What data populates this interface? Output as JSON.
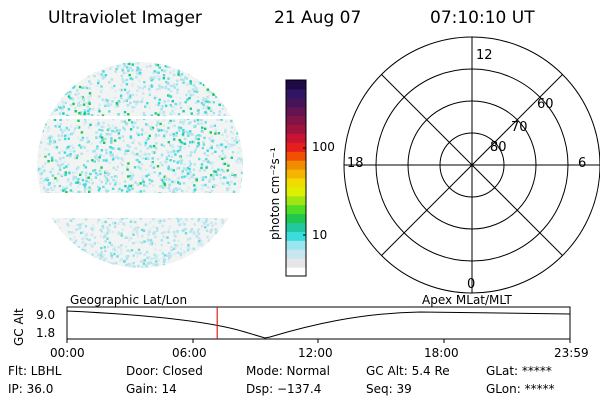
{
  "header": {
    "title": "Ultraviolet Imager",
    "date": "21 Aug 07",
    "time": "07:10:10 UT"
  },
  "colorbar": {
    "unit_label": "photon cm⁻²s⁻¹",
    "tick_labels": [
      "100",
      "10"
    ],
    "colors": [
      "#ffffff",
      "#e6e6e6",
      "#c8e6f0",
      "#9ae6f0",
      "#3cdcdc",
      "#22c8a0",
      "#20c850",
      "#50dc28",
      "#a0e614",
      "#dcf000",
      "#f0dc00",
      "#f5b400",
      "#f08c00",
      "#f05000",
      "#e61e1e",
      "#c81432",
      "#a0143c",
      "#821446",
      "#641450",
      "#46145a",
      "#321464",
      "#1e0a46"
    ]
  },
  "polar_plot": {
    "labels": {
      "top": "12",
      "bottom": "0",
      "left": "18",
      "right": "6"
    },
    "ring_labels": [
      "60",
      "70",
      "80"
    ]
  },
  "timeline": {
    "left_label": "Geographic Lat/Lon",
    "right_label": "Apex  MLat/MLT",
    "axis_title": "GC Alt",
    "y_ticks": [
      "9.0",
      "1.8"
    ],
    "x_ticks": [
      "00:00",
      "06:00",
      "12:00",
      "18:00",
      "23:59"
    ],
    "current_time_fraction": 0.2987
  },
  "status": {
    "filter": "Flt: LBHL",
    "ip": "IP: 36.0",
    "door": "Door: Closed",
    "gain": "Gain: 14",
    "mode": "Mode: Normal",
    "dsp": "Dsp: −137.4",
    "gc_alt": "GC Alt: 5.4 Re",
    "seq": "Seq: 39",
    "glat": "GLat: *****",
    "glon": "GLon: *****"
  }
}
